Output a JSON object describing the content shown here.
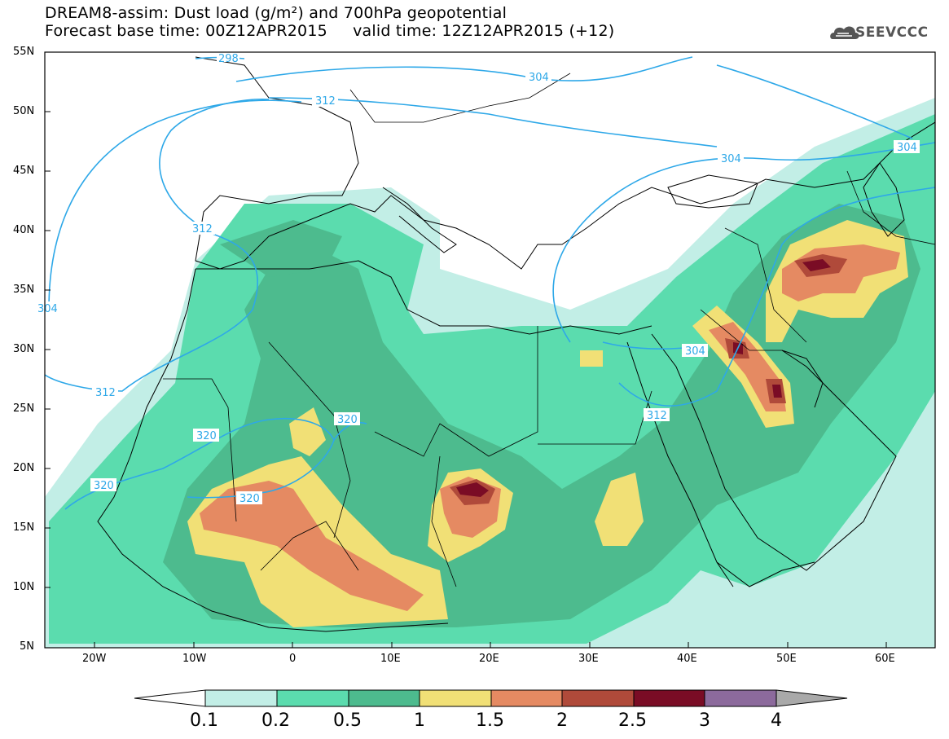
{
  "title": {
    "line1": "DREAM8-assim: Dust load (g/m²) and 700hPa geopotential",
    "line2": "Forecast base time: 00Z12APR2015     valid time: 12Z12APR2015 (+12)"
  },
  "logo": {
    "text": "SEEVCCC",
    "icon": "cloud-logo-icon"
  },
  "axes": {
    "lat_labels": [
      "55N",
      "50N",
      "45N",
      "40N",
      "35N",
      "30N",
      "25N",
      "20N",
      "15N",
      "10N",
      "5N"
    ],
    "lon_labels": [
      "20W",
      "10W",
      "0",
      "10E",
      "20E",
      "30E",
      "40E",
      "50E",
      "60E"
    ]
  },
  "contours": {
    "labels": [
      "304",
      "304",
      "304",
      "304",
      "312",
      "312",
      "312",
      "312",
      "320",
      "320",
      "320",
      "320",
      "304",
      "298"
    ]
  },
  "colorbar": {
    "labels": [
      "0.1",
      "0.2",
      "0.5",
      "1",
      "1.5",
      "2",
      "2.5",
      "3",
      "4"
    ],
    "colors": [
      "#ffffff",
      "#c2eee6",
      "#5bdcae",
      "#4dbb8e",
      "#f1e076",
      "#e58a62",
      "#b04a3a",
      "#7a0c25",
      "#8c6a9c",
      "#a9a9a9"
    ]
  },
  "style": {
    "contour_color": "#2ea8e8",
    "coast_color": "#000000"
  }
}
